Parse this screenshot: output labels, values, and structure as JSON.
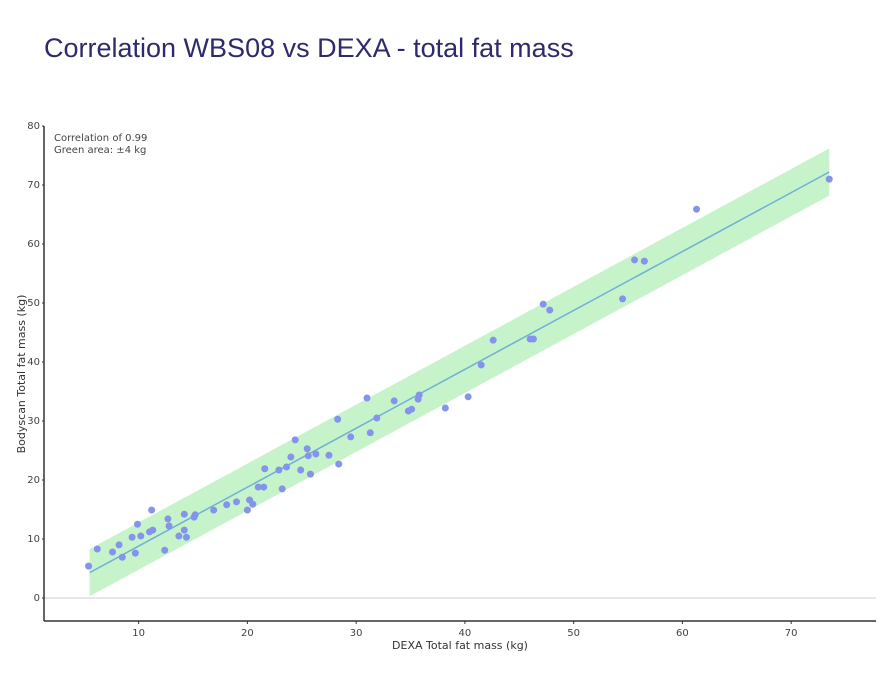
{
  "chart_data": {
    "type": "scatter",
    "title": "Correlation WBS08 vs DEXA - total fat mass",
    "xlabel": "DEXA Total fat mass (kg)",
    "ylabel": "Bodyscan Total fat mass (kg)",
    "annotations": [
      "Correlation of 0.99",
      "Green area: ±4 kg"
    ],
    "xlim": [
      1.3,
      77.8
    ],
    "ylim": [
      -3.9,
      80
    ],
    "xticks": [
      10,
      20,
      30,
      40,
      50,
      60,
      70
    ],
    "yticks": [
      0,
      10,
      20,
      30,
      40,
      50,
      60,
      70,
      80
    ],
    "color": "#8494ec",
    "line": {
      "color": "#6fb0d8",
      "x": [
        5.5,
        73.5
      ],
      "y": [
        4.3,
        72.2
      ]
    },
    "band": 4,
    "band_color": "#c6f3c9",
    "x": [
      5.4,
      6.2,
      7.6,
      8.2,
      8.5,
      9.4,
      9.7,
      9.9,
      10.2,
      11.0,
      11.2,
      11.3,
      12.4,
      12.7,
      12.8,
      13.7,
      14.2,
      14.2,
      14.4,
      15.1,
      15.2,
      16.9,
      18.1,
      19.0,
      20.0,
      20.2,
      20.5,
      21.0,
      21.5,
      21.6,
      22.9,
      23.2,
      23.6,
      24.0,
      24.4,
      24.9,
      25.5,
      25.6,
      25.8,
      26.3,
      27.5,
      28.3,
      28.4,
      29.5,
      31.0,
      31.3,
      31.9,
      33.5,
      34.8,
      35.1,
      35.7,
      35.8,
      38.2,
      40.3,
      41.5,
      42.6,
      46.0,
      46.3,
      47.2,
      47.8,
      54.5,
      55.6,
      56.5,
      61.3,
      73.5
    ],
    "values": [
      5.4,
      8.3,
      7.8,
      9.0,
      6.9,
      10.3,
      7.6,
      12.5,
      10.5,
      11.2,
      14.9,
      11.5,
      8.1,
      13.4,
      12.2,
      10.5,
      14.2,
      11.5,
      10.3,
      13.7,
      14.1,
      14.9,
      15.8,
      16.3,
      14.9,
      16.6,
      15.9,
      18.8,
      18.8,
      21.9,
      21.7,
      18.5,
      22.2,
      23.9,
      26.8,
      21.7,
      25.3,
      24.1,
      21.0,
      24.4,
      24.2,
      30.3,
      22.7,
      27.3,
      33.9,
      28.0,
      30.5,
      33.4,
      31.7,
      32.0,
      33.7,
      34.4,
      32.2,
      34.1,
      39.5,
      43.7,
      43.9,
      43.9,
      49.8,
      48.8,
      50.7,
      57.3,
      57.1,
      65.9,
      71.0
    ]
  }
}
